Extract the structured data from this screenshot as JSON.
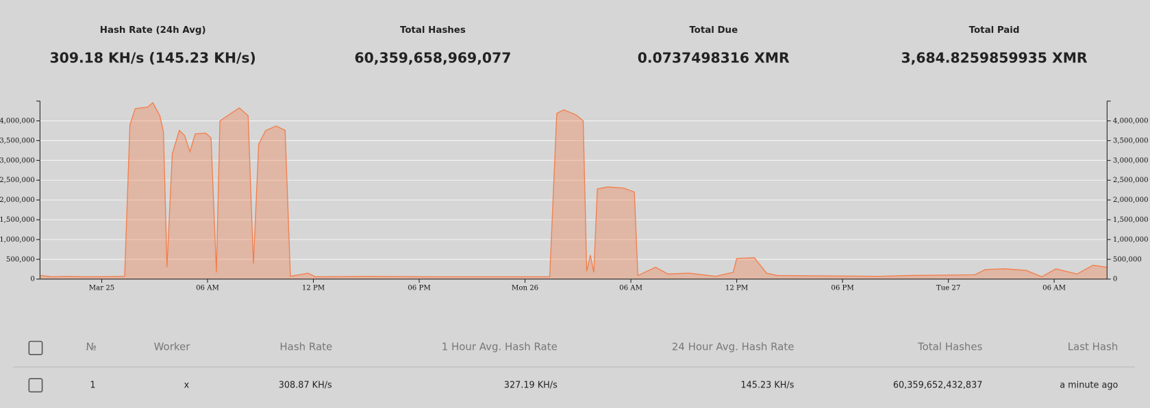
{
  "stats": [
    {
      "label": "Hash Rate (24h Avg)",
      "value": "309.18 KH/s (145.23 KH/s)"
    },
    {
      "label": "Total Hashes",
      "value": "60,359,658,969,077"
    },
    {
      "label": "Total Due",
      "value": "0.0737498316 XMR"
    },
    {
      "label": "Total Paid",
      "value": "3,684.8259859935 XMR"
    }
  ],
  "chart_data": {
    "type": "area",
    "color": "#f47c48",
    "x": [
      -3.5,
      -2.8,
      -2.0,
      -0.7,
      1.3,
      1.6,
      1.9,
      2.6,
      2.9,
      3.3,
      3.5,
      3.7,
      4.0,
      4.4,
      4.7,
      5.0,
      5.3,
      5.9,
      6.2,
      6.5,
      6.7,
      7.2,
      7.8,
      8.3,
      8.6,
      8.9,
      9.3,
      9.9,
      10.4,
      10.7,
      11.7,
      12.1,
      15.0,
      19.2,
      23.3,
      25.4,
      25.8,
      26.2,
      26.9,
      27.3,
      27.5,
      27.7,
      27.9,
      28.1,
      28.7,
      29.6,
      30.2,
      30.4,
      31.4,
      32.1,
      33.3,
      34.8,
      35.8,
      36.0,
      37.0,
      37.7,
      38.3,
      44.1,
      45.8,
      49.5,
      50.1,
      51.2,
      52.4,
      53.3,
      54.1,
      55.3,
      56.2,
      57.0
    ],
    "values": [
      90000,
      60000,
      70000,
      60000,
      70000,
      3900000,
      4310000,
      4350000,
      4460000,
      4130000,
      3720000,
      300000,
      3170000,
      3760000,
      3630000,
      3220000,
      3670000,
      3690000,
      3570000,
      170000,
      4000000,
      4150000,
      4330000,
      4130000,
      390000,
      3410000,
      3760000,
      3870000,
      3760000,
      70000,
      150000,
      60000,
      70000,
      60000,
      60000,
      60000,
      4190000,
      4280000,
      4150000,
      4000000,
      200000,
      610000,
      170000,
      2280000,
      2330000,
      2300000,
      2200000,
      90000,
      300000,
      130000,
      150000,
      70000,
      170000,
      520000,
      540000,
      150000,
      90000,
      70000,
      90000,
      110000,
      240000,
      260000,
      220000,
      60000,
      260000,
      130000,
      350000,
      300000
    ],
    "xlim": [
      -3.5,
      57
    ],
    "xticks": [
      {
        "value": 0,
        "label": "Mar 25"
      },
      {
        "value": 6,
        "label": "06 AM"
      },
      {
        "value": 12,
        "label": "12 PM"
      },
      {
        "value": 18,
        "label": "06 PM"
      },
      {
        "value": 24,
        "label": "Mon 26"
      },
      {
        "value": 30,
        "label": "06 AM"
      },
      {
        "value": 36,
        "label": "12 PM"
      },
      {
        "value": 42,
        "label": "06 PM"
      },
      {
        "value": 48,
        "label": "Tue 27"
      },
      {
        "value": 54,
        "label": "06 AM"
      }
    ],
    "ylim": [
      0,
      4500000
    ],
    "yticks": [
      0,
      {
        "value": 500000,
        "label": "500,000"
      },
      {
        "value": 1000000,
        "label": "1,000,000"
      },
      {
        "value": 1500000,
        "label": "1,500,000"
      },
      {
        "value": 2000000,
        "label": "2,000,000"
      },
      {
        "value": 2500000,
        "label": "2,500,000"
      },
      {
        "value": 3000000,
        "label": "3,000,000"
      },
      {
        "value": 3500000,
        "label": "3,500,000"
      },
      {
        "value": 4000000,
        "label": "4,000,000"
      }
    ],
    "y2lim": [
      0,
      4500000
    ],
    "y2ticks": [
      0,
      {
        "value": 500000,
        "label": "500,000"
      },
      {
        "value": 1000000,
        "label": "1,000,000"
      },
      {
        "value": 1500000,
        "label": "1,500,000"
      },
      {
        "value": 2000000,
        "label": "2,000,000"
      },
      {
        "value": 2500000,
        "label": "2,500,000"
      },
      {
        "value": 3000000,
        "label": "3,000,000"
      },
      {
        "value": 3500000,
        "label": "3,500,000"
      },
      {
        "value": 4000000,
        "label": "4,000,000"
      }
    ],
    "grid": true
  },
  "table": {
    "headers": [
      "№",
      "Worker",
      "Hash Rate",
      "1 Hour Avg. Hash Rate",
      "24 Hour Avg. Hash Rate",
      "Total Hashes",
      "Last Hash"
    ],
    "rows": [
      [
        "1",
        "x",
        "308.87 KH/s",
        "327.19 KH/s",
        "145.23 KH/s",
        "60,359,652,432,837",
        "a minute ago"
      ]
    ]
  }
}
